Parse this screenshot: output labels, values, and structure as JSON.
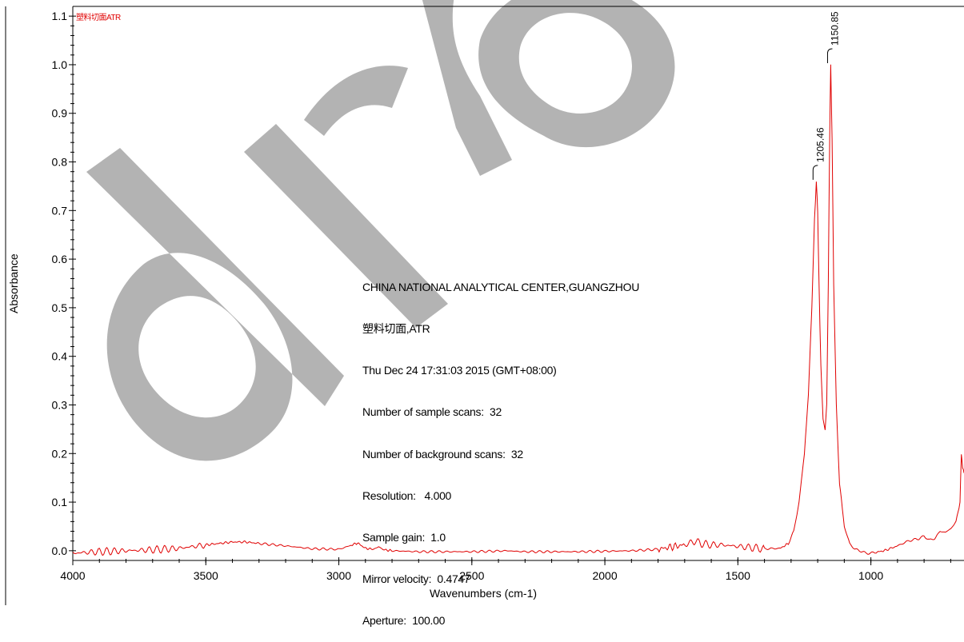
{
  "chart_data": {
    "type": "line",
    "legend": "塑料切面ATR",
    "xlabel": "Wavenumbers (cm-1)",
    "ylabel": "Absorbance",
    "xlim": [
      4000,
      650
    ],
    "ylim": [
      -0.02,
      1.12
    ],
    "x_ticks": [
      "4000",
      "3500",
      "3000",
      "2500",
      "2000",
      "1500",
      "1000"
    ],
    "y_ticks": [
      "0.0",
      "0.1",
      "0.2",
      "0.3",
      "0.4",
      "0.5",
      "0.6",
      "0.7",
      "0.8",
      "0.9",
      "1.0",
      "1.1"
    ],
    "series": [
      {
        "color": "#e00000",
        "x": [
          4000,
          3900,
          3800,
          3700,
          3600,
          3500,
          3450,
          3400,
          3350,
          3300,
          3200,
          3100,
          3000,
          2960,
          2930,
          2900,
          2870,
          2850,
          2830,
          2800,
          2700,
          2500,
          2360,
          2340,
          2300,
          2100,
          2000,
          1900,
          1800,
          1750,
          1700,
          1660,
          1640,
          1600,
          1560,
          1520,
          1480,
          1440,
          1400,
          1340,
          1310,
          1290,
          1270,
          1250,
          1235,
          1222,
          1212,
          1205,
          1200,
          1195,
          1188,
          1180,
          1172,
          1166,
          1160,
          1155,
          1151,
          1146,
          1140,
          1130,
          1118,
          1100,
          1080,
          1060,
          1040,
          1020,
          1000,
          980,
          950,
          900,
          860,
          820,
          800,
          780,
          760,
          740,
          720,
          700,
          680,
          665,
          660,
          655,
          650
        ],
        "y": [
          -0.005,
          -0.002,
          0.0,
          0.002,
          0.005,
          0.012,
          0.015,
          0.018,
          0.018,
          0.015,
          0.01,
          0.004,
          0.003,
          0.01,
          0.016,
          0.005,
          0.003,
          0.008,
          0.002,
          0.0,
          -0.002,
          -0.002,
          0.0,
          -0.001,
          -0.002,
          -0.002,
          -0.001,
          0.0,
          0.003,
          0.008,
          0.012,
          0.02,
          0.015,
          0.012,
          0.012,
          0.01,
          0.008,
          0.006,
          0.004,
          0.005,
          0.015,
          0.04,
          0.1,
          0.2,
          0.32,
          0.5,
          0.68,
          0.76,
          0.7,
          0.55,
          0.38,
          0.27,
          0.25,
          0.3,
          0.55,
          0.85,
          1.0,
          0.85,
          0.55,
          0.3,
          0.14,
          0.05,
          0.015,
          0.003,
          0.0,
          -0.005,
          -0.005,
          -0.003,
          0.0,
          0.01,
          0.02,
          0.025,
          0.03,
          0.022,
          0.025,
          0.04,
          0.038,
          0.045,
          0.06,
          0.1,
          0.2,
          0.17,
          0.16
        ]
      }
    ],
    "annotations": [
      {
        "label": "1205.46",
        "x": 1205.46,
        "y": 0.76
      },
      {
        "label": "1150.85",
        "x": 1150.85,
        "y": 1.0
      }
    ],
    "grid": false
  },
  "info_lines": [
    "CHINA NATIONAL ANALYTICAL CENTER,GUANGZHOU",
    "塑料切面,ATR",
    "Thu Dec 24 17:31:03 2015 (GMT+08:00)",
    "Number of sample scans:  32",
    "Number of background scans:  32",
    "Resolution:   4.000",
    "Sample gain:  1.0",
    "Mirror velocity:  0.4747",
    "Aperture:  100.00"
  ],
  "watermark_text": "dra",
  "colors": {
    "spectrum": "#e00000",
    "watermark": "#b3b3b3",
    "axis": "#000000"
  }
}
